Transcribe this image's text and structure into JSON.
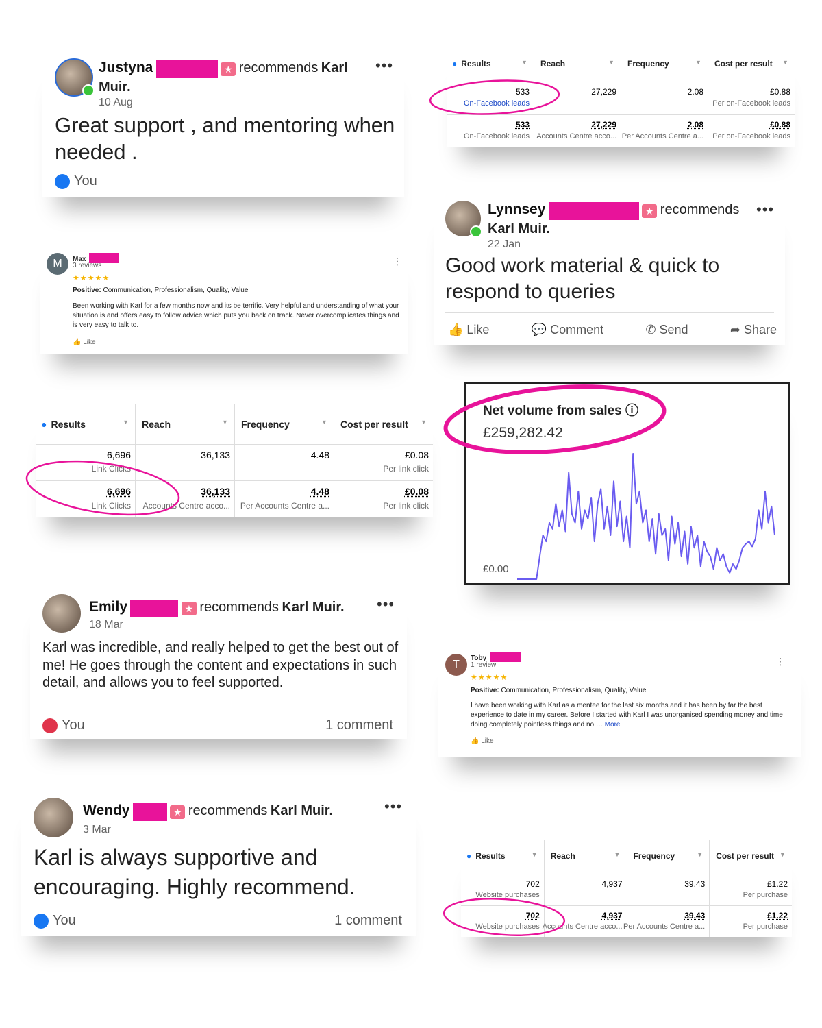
{
  "justyna": {
    "name": "Justyna",
    "recommends": "recommends",
    "target": "Karl Muir.",
    "date": "10 Aug",
    "text": "Great support , and mentoring when needed .",
    "reaction": "You"
  },
  "lynnsey": {
    "name": "Lynnsey",
    "recommends": "recommends",
    "target": "Karl Muir.",
    "date": "22 Jan",
    "text": "Good work material & quick to respond to queries",
    "actions": [
      "Like",
      "Comment",
      "Send",
      "Share"
    ]
  },
  "max": {
    "initial": "M",
    "name": "Max",
    "reviews": "3 reviews",
    "positive_label": "Positive:",
    "positive": "Communication, Professionalism, Quality, Value",
    "text": "Been working with Karl for a few months now and its be terrific. Very helpful and understanding of what your situation is and offers easy to follow advice which puts you back on track. Never overcomplicates things and is very easy to talk to.",
    "like": "Like"
  },
  "toby": {
    "initial": "T",
    "name": "Toby",
    "reviews": "1 review",
    "positive_label": "Positive:",
    "positive": "Communication, Professionalism, Quality, Value",
    "text": "I have been working with Karl as a mentee for the last six months and it has been by far the best experience to date in my career. Before I started with Karl I was unorganised spending money and time doing completely pointless things and no …",
    "more": "More",
    "like": "Like"
  },
  "emily": {
    "name": "Emily",
    "recommends": "recommends",
    "target": "Karl Muir.",
    "date": "18 Mar",
    "text": "Karl was incredible, and really helped to get the best out of me! He goes through the content and expectations in such detail, and allows you to feel supported.",
    "reaction": "You",
    "comments": "1 comment"
  },
  "wendy": {
    "name": "Wendy",
    "recommends": "recommends",
    "target": "Karl Muir.",
    "date": "3 Mar",
    "text": "Karl is always supportive and encouraging. Highly recommend.",
    "reaction": "You",
    "comments": "1 comment"
  },
  "tables": [
    {
      "headers": [
        "Results",
        "Reach",
        "Frequency",
        "Cost per result"
      ],
      "rows": [
        [
          {
            "value": "533",
            "sub": "On-Facebook leads"
          },
          {
            "value": "27,229"
          },
          {
            "value": "2.08"
          },
          {
            "value": "£0.88",
            "sub": "Per on-Facebook leads"
          }
        ],
        [
          {
            "value": "533",
            "sub": "On-Facebook leads"
          },
          {
            "value": "27,229",
            "sub": "Accounts Centre acco..."
          },
          {
            "value": "2.08",
            "sub": "Per Accounts Centre a..."
          },
          {
            "value": "£0.88",
            "sub": "Per on-Facebook leads"
          }
        ]
      ]
    },
    {
      "headers": [
        "Results",
        "Reach",
        "Frequency",
        "Cost per result"
      ],
      "rows": [
        [
          {
            "value": "6,696",
            "sub": "Link Clicks"
          },
          {
            "value": "36,133"
          },
          {
            "value": "4.48"
          },
          {
            "value": "£0.08",
            "sub": "Per link click"
          }
        ],
        [
          {
            "value": "6,696",
            "sub": "Link Clicks"
          },
          {
            "value": "36,133",
            "sub": "Accounts Centre acco..."
          },
          {
            "value": "4.48",
            "sub": "Per Accounts Centre a..."
          },
          {
            "value": "£0.08",
            "sub": "Per link click"
          }
        ]
      ]
    },
    {
      "headers": [
        "Results",
        "Reach",
        "Frequency",
        "Cost per result"
      ],
      "rows": [
        [
          {
            "value": "702",
            "sub": "Website purchases"
          },
          {
            "value": "4,937"
          },
          {
            "value": "39.43"
          },
          {
            "value": "£1.22",
            "sub": "Per purchase"
          }
        ],
        [
          {
            "value": "702",
            "sub": "Website purchases"
          },
          {
            "value": "4,937",
            "sub": "Accounts Centre acco..."
          },
          {
            "value": "39.43",
            "sub": "Per Accounts Centre a..."
          },
          {
            "value": "£1.22",
            "sub": "Per purchase"
          }
        ]
      ]
    }
  ],
  "sales_chart": {
    "type": "line",
    "title": "Net volume from sales",
    "total": "£259,282.42",
    "baseline_label": "£0.00",
    "color": "#6a5cf0",
    "values": [
      0,
      0,
      0,
      0,
      0,
      0,
      0,
      18,
      35,
      30,
      45,
      40,
      60,
      42,
      55,
      38,
      85,
      52,
      45,
      70,
      40,
      55,
      48,
      65,
      30,
      60,
      72,
      40,
      58,
      35,
      78,
      42,
      62,
      30,
      50,
      25,
      100,
      60,
      70,
      45,
      55,
      30,
      48,
      20,
      52,
      35,
      40,
      15,
      50,
      28,
      45,
      18,
      38,
      12,
      42,
      25,
      35,
      10,
      30,
      22,
      18,
      8,
      25,
      15,
      20,
      10,
      5,
      12,
      8,
      15,
      25,
      28,
      30,
      26,
      32,
      55,
      40,
      70,
      45,
      58,
      35
    ]
  }
}
